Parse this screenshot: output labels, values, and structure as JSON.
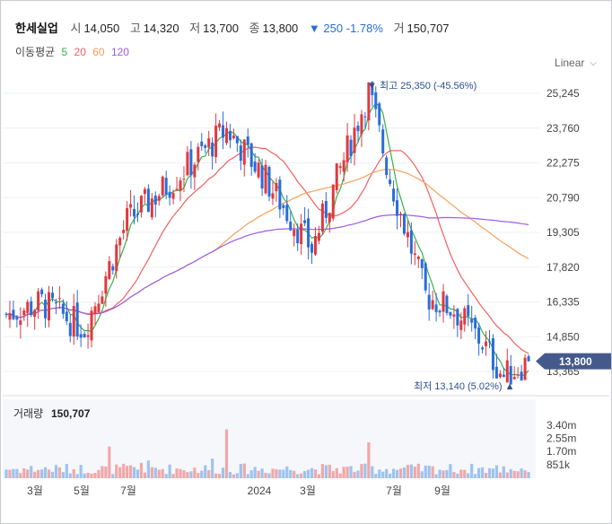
{
  "header": {
    "name": "한세실업",
    "open_label": "시",
    "open": "14,050",
    "high_label": "고",
    "high": "14,320",
    "low_label": "저",
    "low": "13,700",
    "close_label": "종",
    "close": "13,800",
    "change_arrow": "▼",
    "change": "250",
    "change_pct": "-1.78%",
    "volume_label": "거",
    "volume": "150,707"
  },
  "ma": {
    "label": "이동평균",
    "items": [
      {
        "period": "5",
        "color": "#36b24a"
      },
      {
        "period": "20",
        "color": "#f06060"
      },
      {
        "period": "60",
        "color": "#f6a05a"
      },
      {
        "period": "120",
        "color": "#9c5de4"
      }
    ]
  },
  "scale_select": {
    "value": "Linear",
    "icon": "chevron-down-icon"
  },
  "price_axis": {
    "ticks": [
      "25,245",
      "23,760",
      "22,275",
      "20,790",
      "19,305",
      "17,820",
      "16,335",
      "14,850",
      "13,365"
    ],
    "current_price": "13,800"
  },
  "annotations": {
    "high": {
      "marker": "▼",
      "label": "최고",
      "value": "25,350",
      "pct": "(-45.56%)"
    },
    "low": {
      "label": "최저",
      "value": "13,140",
      "pct": "(5.02%)",
      "marker": "▲"
    }
  },
  "volume_panel": {
    "label": "거래량",
    "value": "150,707",
    "ticks": [
      "3.40m",
      "2.55m",
      "1.70m",
      "851k"
    ]
  },
  "x_axis": {
    "labels": [
      "3월",
      "5월",
      "7월",
      "2024",
      "3월",
      "7월",
      "9월"
    ]
  },
  "colors": {
    "up": "#e0393e",
    "down": "#2a6cd9",
    "vol_up": "#f0a8a8",
    "vol_down": "#9ec3ee",
    "badge": "#455a8c",
    "grid": "#eef0f3"
  },
  "chart_data": {
    "type": "candlestick",
    "price_range": [
      13365,
      25245
    ],
    "volume_range": [
      0,
      3400000
    ],
    "anchors": {
      "start": 15800,
      "march": 16300,
      "may": 15200,
      "july_2023": 19800,
      "aug": 21400,
      "oct_peak": 23700,
      "dec": 21800,
      "jan_2024": 20400,
      "mar_low": 18600,
      "jun_peak": 25350,
      "jul_2024": 21600,
      "aug_drop": 16600,
      "sep_rebound": 16000,
      "oct": 14600,
      "nov_low": 13140,
      "last": 13800
    },
    "moving_averages": [
      "MA5",
      "MA20",
      "MA60",
      "MA120"
    ]
  }
}
